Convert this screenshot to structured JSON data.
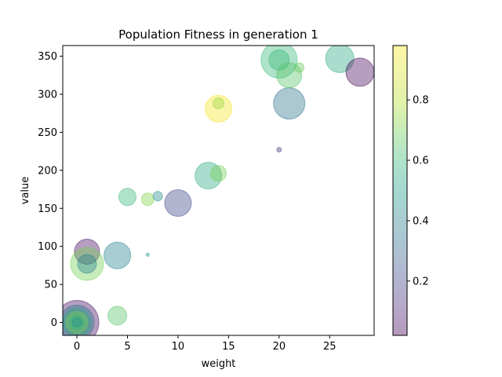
{
  "chart_data": {
    "type": "scatter",
    "title": "Population Fitness in generation 1",
    "xlabel": "weight",
    "ylabel": "value",
    "xlim": [
      -1.4,
      29.4
    ],
    "ylim": [
      -17,
      364
    ],
    "xticks": [
      0,
      5,
      10,
      15,
      20,
      25
    ],
    "yticks": [
      0,
      50,
      100,
      150,
      200,
      250,
      300,
      350
    ],
    "colorbar": {
      "range": [
        0.02,
        0.98
      ],
      "ticks": [
        0.2,
        0.4,
        0.6,
        0.8
      ],
      "colormap": "viridis"
    },
    "grid": false,
    "points": [
      {
        "x": 0,
        "y": 0,
        "c": 0.05,
        "s": 28
      },
      {
        "x": 0,
        "y": 0,
        "c": 0.35,
        "s": 22
      },
      {
        "x": 0,
        "y": 0,
        "c": 0.55,
        "s": 18
      },
      {
        "x": 0,
        "y": 0,
        "c": 0.7,
        "s": 14
      },
      {
        "x": 0,
        "y": 0,
        "c": 0.6,
        "s": 9
      },
      {
        "x": 0,
        "y": 0,
        "c": 0.45,
        "s": 6
      },
      {
        "x": 1,
        "y": 93,
        "c": 0.05,
        "s": 16
      },
      {
        "x": 1,
        "y": 77,
        "c": 0.7,
        "s": 21
      },
      {
        "x": 1,
        "y": 77,
        "c": 0.4,
        "s": 12
      },
      {
        "x": 4,
        "y": 88,
        "c": 0.4,
        "s": 17
      },
      {
        "x": 4,
        "y": 9,
        "c": 0.65,
        "s": 12
      },
      {
        "x": 5,
        "y": 165,
        "c": 0.6,
        "s": 11
      },
      {
        "x": 7,
        "y": 162,
        "c": 0.72,
        "s": 8
      },
      {
        "x": 7,
        "y": 89,
        "c": 0.5,
        "s": 2
      },
      {
        "x": 8,
        "y": 166,
        "c": 0.45,
        "s": 6
      },
      {
        "x": 10,
        "y": 157,
        "c": 0.2,
        "s": 17
      },
      {
        "x": 13,
        "y": 193,
        "c": 0.55,
        "s": 17
      },
      {
        "x": 14,
        "y": 196,
        "c": 0.7,
        "s": 10
      },
      {
        "x": 14,
        "y": 281,
        "c": 0.95,
        "s": 17
      },
      {
        "x": 14,
        "y": 288,
        "c": 0.75,
        "s": 7
      },
      {
        "x": 20,
        "y": 227,
        "c": 0.15,
        "s": 3
      },
      {
        "x": 20,
        "y": 345,
        "c": 0.6,
        "s": 23
      },
      {
        "x": 20,
        "y": 345,
        "c": 0.6,
        "s": 13
      },
      {
        "x": 21,
        "y": 288,
        "c": 0.35,
        "s": 20
      },
      {
        "x": 21,
        "y": 325,
        "c": 0.65,
        "s": 16
      },
      {
        "x": 22,
        "y": 335,
        "c": 0.68,
        "s": 6
      },
      {
        "x": 26,
        "y": 347,
        "c": 0.55,
        "s": 18
      },
      {
        "x": 28,
        "y": 329,
        "c": 0.05,
        "s": 18
      }
    ]
  }
}
